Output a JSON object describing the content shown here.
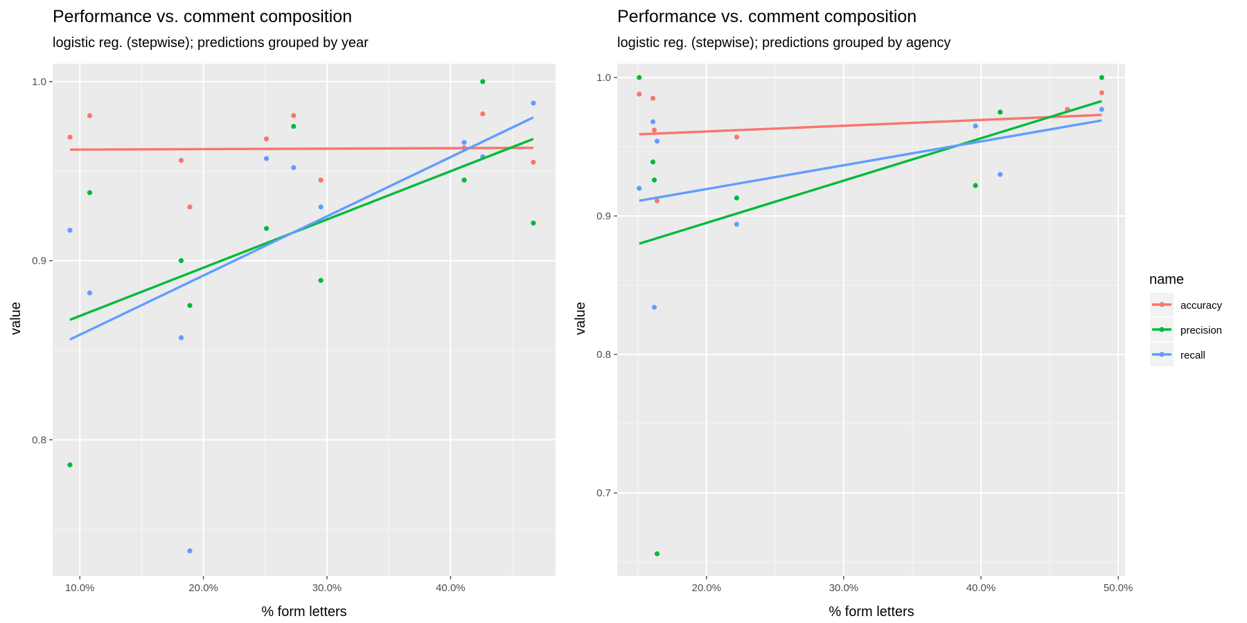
{
  "chart_data": [
    {
      "type": "scatter",
      "title": "Performance vs. comment composition",
      "subtitle": "logistic reg. (stepwise); predictions grouped by year",
      "xlabel": "% form letters",
      "ylabel": "value",
      "xlim": [
        0.078,
        0.485
      ],
      "ylim": [
        0.724,
        1.01
      ],
      "x_ticks": [
        0.1,
        0.2,
        0.3,
        0.4
      ],
      "x_tick_labels": [
        "10.0%",
        "20.0%",
        "30.0%",
        "40.0%"
      ],
      "y_ticks": [
        0.8,
        0.9,
        1.0
      ],
      "y_tick_labels": [
        "0.8",
        "0.9",
        "1.0"
      ],
      "grid": true,
      "series": [
        {
          "name": "accuracy",
          "color": "#F8766D",
          "points": [
            [
              0.092,
              0.969
            ],
            [
              0.108,
              0.981
            ],
            [
              0.182,
              0.956
            ],
            [
              0.189,
              0.93
            ],
            [
              0.251,
              0.968
            ],
            [
              0.273,
              0.981
            ],
            [
              0.295,
              0.945
            ],
            [
              0.411,
              0.963
            ],
            [
              0.426,
              0.982
            ],
            [
              0.467,
              0.955
            ]
          ],
          "fit": [
            [
              0.092,
              0.962
            ],
            [
              0.467,
              0.963
            ]
          ]
        },
        {
          "name": "precision",
          "color": "#00BA38",
          "points": [
            [
              0.092,
              0.786
            ],
            [
              0.108,
              0.938
            ],
            [
              0.182,
              0.9
            ],
            [
              0.189,
              0.875
            ],
            [
              0.251,
              0.918
            ],
            [
              0.273,
              0.975
            ],
            [
              0.295,
              0.889
            ],
            [
              0.411,
              0.945
            ],
            [
              0.426,
              1.0
            ],
            [
              0.467,
              0.921
            ]
          ],
          "fit": [
            [
              0.092,
              0.867
            ],
            [
              0.467,
              0.968
            ]
          ]
        },
        {
          "name": "recall",
          "color": "#619CFF",
          "points": [
            [
              0.092,
              0.917
            ],
            [
              0.108,
              0.882
            ],
            [
              0.182,
              0.857
            ],
            [
              0.189,
              0.738
            ],
            [
              0.251,
              0.957
            ],
            [
              0.273,
              0.952
            ],
            [
              0.295,
              0.93
            ],
            [
              0.411,
              0.966
            ],
            [
              0.426,
              0.958
            ],
            [
              0.467,
              0.988
            ]
          ],
          "fit": [
            [
              0.092,
              0.856
            ],
            [
              0.467,
              0.98
            ]
          ]
        }
      ]
    },
    {
      "type": "scatter",
      "title": "Performance vs. comment composition",
      "subtitle": "logistic reg. (stepwise); predictions grouped by agency",
      "xlabel": "% form letters",
      "ylabel": "value",
      "xlim": [
        0.135,
        0.505
      ],
      "ylim": [
        0.64,
        1.01
      ],
      "x_ticks": [
        0.2,
        0.3,
        0.4,
        0.5
      ],
      "x_tick_labels": [
        "20.0%",
        "30.0%",
        "40.0%",
        "50.0%"
      ],
      "y_ticks": [
        0.7,
        0.8,
        0.9,
        1.0
      ],
      "y_tick_labels": [
        "0.7",
        "0.8",
        "0.9",
        "1.0"
      ],
      "grid": true,
      "series": [
        {
          "name": "accuracy",
          "color": "#F8766D",
          "points": [
            [
              0.151,
              0.988
            ],
            [
              0.161,
              0.985
            ],
            [
              0.162,
              0.962
            ],
            [
              0.164,
              0.911
            ],
            [
              0.222,
              0.957
            ],
            [
              0.414,
              0.975
            ],
            [
              0.463,
              0.977
            ],
            [
              0.488,
              0.989
            ]
          ],
          "fit": [
            [
              0.151,
              0.959
            ],
            [
              0.488,
              0.973
            ]
          ]
        },
        {
          "name": "precision",
          "color": "#00BA38",
          "points": [
            [
              0.151,
              1.0
            ],
            [
              0.161,
              0.939
            ],
            [
              0.162,
              0.926
            ],
            [
              0.164,
              0.656
            ],
            [
              0.222,
              0.913
            ],
            [
              0.396,
              0.922
            ],
            [
              0.414,
              0.975
            ],
            [
              0.488,
              1.0
            ]
          ],
          "fit": [
            [
              0.151,
              0.88
            ],
            [
              0.488,
              0.983
            ]
          ]
        },
        {
          "name": "recall",
          "color": "#619CFF",
          "points": [
            [
              0.151,
              0.92
            ],
            [
              0.161,
              0.968
            ],
            [
              0.162,
              0.834
            ],
            [
              0.164,
              0.954
            ],
            [
              0.222,
              0.894
            ],
            [
              0.396,
              0.965
            ],
            [
              0.414,
              0.93
            ],
            [
              0.488,
              0.977
            ]
          ],
          "fit": [
            [
              0.151,
              0.911
            ],
            [
              0.488,
              0.969
            ]
          ]
        }
      ]
    }
  ],
  "legend": {
    "title": "name",
    "placement": "right",
    "items": [
      {
        "label": "accuracy",
        "color": "#F8766D"
      },
      {
        "label": "precision",
        "color": "#00BA38"
      },
      {
        "label": "recall",
        "color": "#619CFF"
      }
    ]
  }
}
